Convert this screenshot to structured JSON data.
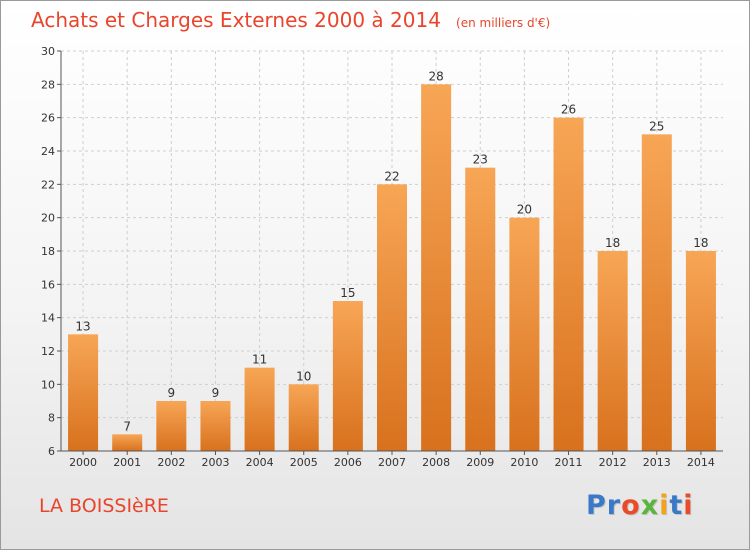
{
  "header": {
    "title": "Achats et Charges Externes 2000 à 2014",
    "units": "(en milliers d'€)"
  },
  "footer": {
    "location": "LA BOISSIèRE",
    "logo_text": "Proxiti"
  },
  "colors": {
    "title": "#e8452c",
    "bar_top": "#f7a656",
    "bar_bottom": "#d8711d",
    "logo": [
      "#3a78c8",
      "#3a78c8",
      "#e84a2a",
      "#5bb43c",
      "#f2a21c",
      "#3a78c8",
      "#e84a2a"
    ]
  },
  "chart_data": {
    "type": "bar",
    "categories": [
      "2000",
      "2001",
      "2002",
      "2003",
      "2004",
      "2005",
      "2006",
      "2007",
      "2008",
      "2009",
      "2010",
      "2011",
      "2012",
      "2013",
      "2014"
    ],
    "values": [
      13,
      7,
      9,
      9,
      11,
      10,
      15,
      22,
      28,
      23,
      20,
      26,
      18,
      25,
      18
    ],
    "title": "Achats et Charges Externes 2000 à 2014",
    "ylim": [
      6,
      30
    ],
    "yticks": [
      6,
      8,
      10,
      12,
      14,
      16,
      18,
      20,
      22,
      24,
      26,
      28,
      30
    ],
    "grid": true
  }
}
